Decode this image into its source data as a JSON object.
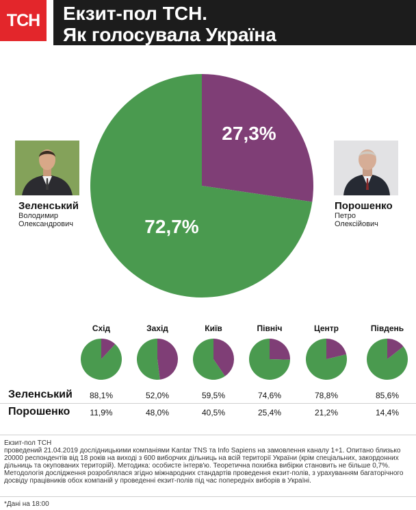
{
  "brand": {
    "logo": "ТСН"
  },
  "header": {
    "line1": "Екзит-пол ТСН.",
    "line2": "Як  голосувала Україна"
  },
  "candidates": [
    {
      "surname": "Зеленський",
      "first": "Володимир",
      "patronymic": "Олександрович"
    },
    {
      "surname": "Порошенко",
      "first": "Петро",
      "patronymic": "Олексійович"
    }
  ],
  "colors": {
    "green": "#4a9a4f",
    "purple": "#7f3e76",
    "logo_red": "#e3262b",
    "header_bg": "#1c1c1c"
  },
  "chart_data": [
    {
      "type": "pie",
      "labels": [
        "Зеленський",
        "Порошенко"
      ],
      "values": [
        72.7,
        27.3
      ],
      "value_labels": [
        "72,7%",
        "27,3%"
      ],
      "colors": [
        "#4a9a4f",
        "#7f3e76"
      ]
    },
    {
      "type": "pie",
      "small_multiples": true,
      "regions": [
        "Схід",
        "Захід",
        "Київ",
        "Північ",
        "Центр",
        "Південь"
      ],
      "series": [
        {
          "name": "Зеленський",
          "values": [
            88.1,
            52.0,
            59.5,
            74.6,
            78.8,
            85.6
          ],
          "labels": [
            "88,1%",
            "52,0%",
            "59,5%",
            "74,6%",
            "78,8%",
            "85,6%"
          ]
        },
        {
          "name": "Порошенко",
          "values": [
            11.9,
            48.0,
            40.5,
            25.4,
            21.2,
            14.4
          ],
          "labels": [
            "11,9%",
            "48,0%",
            "40,5%",
            "25,4%",
            "21,2%",
            "14,4%"
          ]
        }
      ]
    }
  ],
  "footer": {
    "line1": "Екзит-пол ТСН",
    "body": "проведений 21.04.2019 дослідницькими компаніями Kantar TNS та Info Sapiens на замовлення каналу 1+1. Опитано близько 20000 респондентів від 18 років на виході з 600 виборчих дільниць на всій території України (крім спеціальних, закордонних дільниць та окупованих територій). Методика: особисте інтерв'ю. Теоретична похибка вибірки становить не більше 0,7%.",
    "method": "Методологія дослідження розроблялася згідно міжнародних стандартів проведення екзит-полів, з урахуванням багаторічного досвіду працівників обох компаній у проведенні екзит-полів під час попередніх виборів в Україні.",
    "note": "*Дані на 18:00"
  }
}
